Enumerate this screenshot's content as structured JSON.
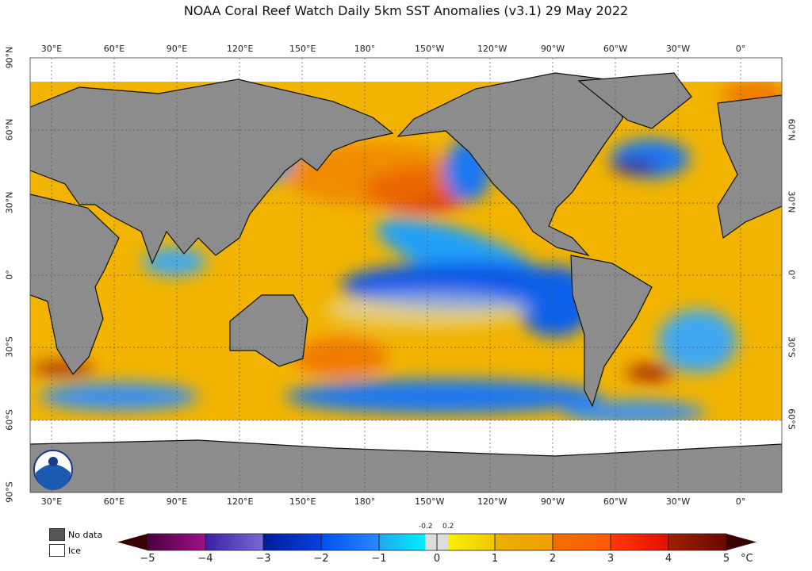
{
  "title": "NOAA Coral Reef Watch Daily 5km SST Anomalies  (v3.1)   29 May 2022",
  "lon_ticks": [
    "30°E",
    "60°E",
    "90°E",
    "120°E",
    "150°E",
    "180°",
    "150°W",
    "120°W",
    "90°W",
    "60°W",
    "30°W",
    "0°"
  ],
  "lat_ticks_left": [
    "90°N",
    "60°N",
    "30°N",
    "0°",
    "30°S",
    "60°S",
    "90°S"
  ],
  "lat_ticks_right": [
    "60°N",
    "30°N",
    "0°",
    "30°S",
    "60°S"
  ],
  "legend": {
    "nodata": "No data",
    "ice": "Ice",
    "nodata_color": "#555555",
    "ice_color": "#ffffff"
  },
  "colorbar": {
    "ticks": [
      "−5",
      "−4",
      "−3",
      "−2",
      "−1",
      "0",
      "1",
      "2",
      "3",
      "4",
      "5"
    ],
    "minor_ticks": [
      "-0.2",
      "0.2"
    ],
    "unit": "°C",
    "colors": [
      "#5a0a55",
      "#4a2aa8",
      "#0a1eaa",
      "#0a5aff",
      "#00c8ff",
      "#dddddd",
      "#f5e800",
      "#f0a800",
      "#ff6a00",
      "#ff2a00",
      "#8a1a00"
    ]
  },
  "colors": {
    "land": "#8c8c8c",
    "ocean_warm": "#f2b400",
    "ocean_cool": "#1e78f0"
  }
}
